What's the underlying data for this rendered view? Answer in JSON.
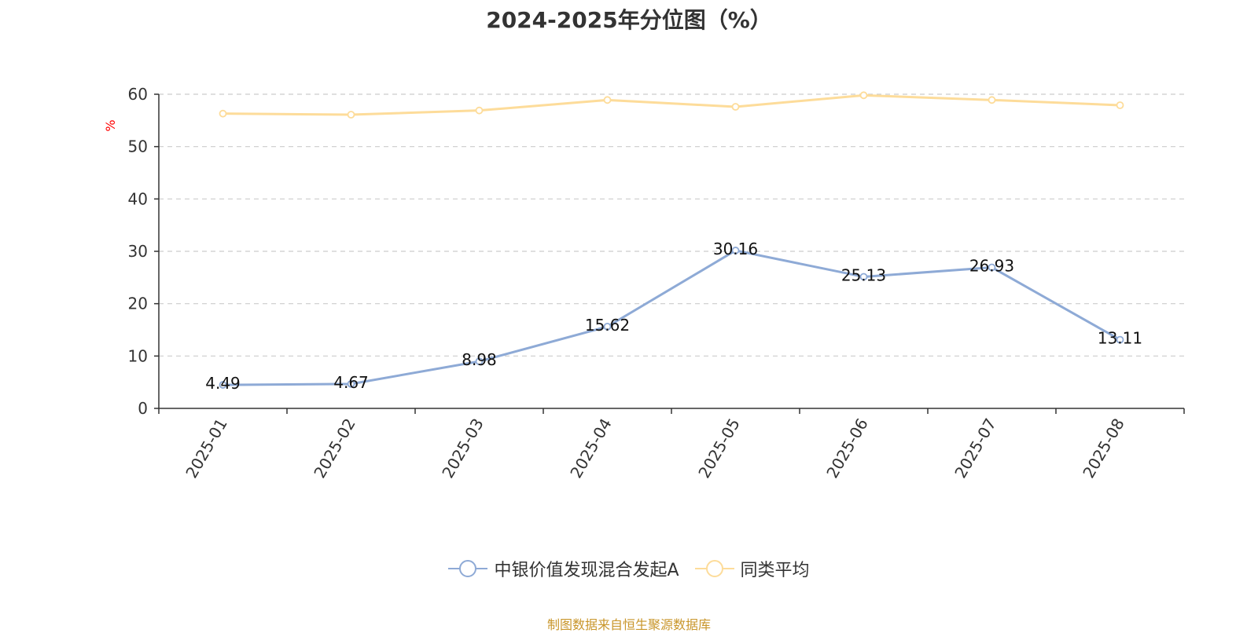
{
  "chart_data": {
    "type": "line",
    "title": "2024-2025年分位图（%）",
    "ylabel": "%",
    "xlabel": "",
    "categories": [
      "2025-01",
      "2025-02",
      "2025-03",
      "2025-04",
      "2025-05",
      "2025-06",
      "2025-07",
      "2025-08"
    ],
    "ylim": [
      0,
      60
    ],
    "yticks": [
      0,
      10,
      20,
      30,
      40,
      50,
      60
    ],
    "grid": true,
    "legend_position": "bottom",
    "series": [
      {
        "name": "中银价值发现混合发起A",
        "color": "#8eaad6",
        "values": [
          4.49,
          4.67,
          8.98,
          15.62,
          30.16,
          25.13,
          26.93,
          13.11
        ],
        "labels": [
          "4.49",
          "4.67",
          "8.98",
          "15.62",
          "30.16",
          "25.13",
          "26.93",
          "13.11"
        ]
      },
      {
        "name": "同类平均",
        "color": "#fddc9a",
        "values": [
          56.3,
          56.1,
          56.9,
          58.9,
          57.6,
          59.8,
          58.9,
          57.9
        ]
      }
    ]
  },
  "source": "制图数据来自恒生聚源数据库"
}
